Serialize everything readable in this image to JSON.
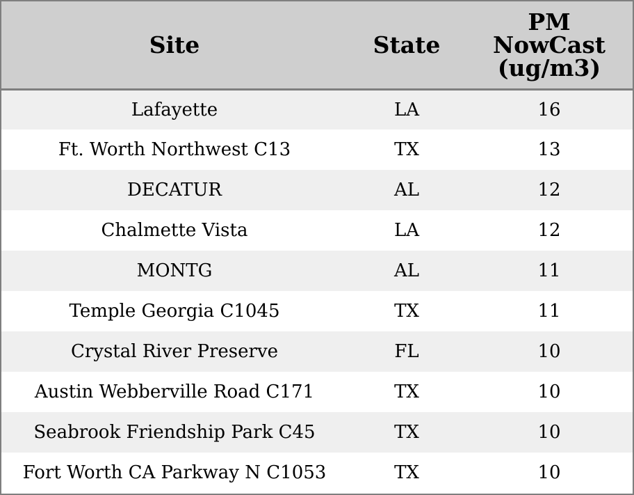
{
  "chart_data": {
    "type": "table",
    "columns": [
      "Site",
      "State",
      "PM NowCast (ug/m3)"
    ],
    "column_header_lines": {
      "pm": [
        "PM",
        "NowCast",
        "(ug/m3)"
      ]
    },
    "rows": [
      {
        "site": "Lafayette",
        "state": "LA",
        "pm": "16"
      },
      {
        "site": "Ft. Worth Northwest C13",
        "state": "TX",
        "pm": "13"
      },
      {
        "site": "DECATUR",
        "state": "AL",
        "pm": "12"
      },
      {
        "site": "Chalmette Vista",
        "state": "LA",
        "pm": "12"
      },
      {
        "site": "MONTG",
        "state": "AL",
        "pm": "11"
      },
      {
        "site": "Temple Georgia C1045",
        "state": "TX",
        "pm": "11"
      },
      {
        "site": "Crystal River Preserve",
        "state": "FL",
        "pm": "10"
      },
      {
        "site": "Austin Webberville Road C171",
        "state": "TX",
        "pm": "10"
      },
      {
        "site": "Seabrook Friendship Park C45",
        "state": "TX",
        "pm": "10"
      },
      {
        "site": "Fort Worth CA Parkway N C1053",
        "state": "TX",
        "pm": "10"
      }
    ]
  },
  "colors": {
    "header_bg": "#cfcfcf",
    "stripe_bg": "#efefef",
    "row_bg": "#ffffff",
    "border": "#7f7f7f"
  }
}
